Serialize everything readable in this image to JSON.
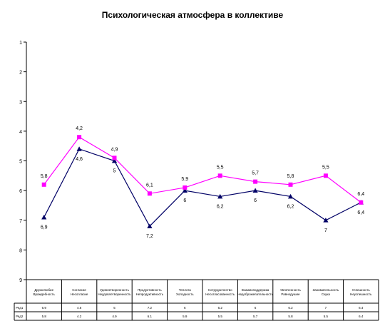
{
  "chart_data": {
    "type": "line",
    "title": "Психологическая атмосфера в коллективе",
    "xlabel": "",
    "ylabel": "",
    "ylim": [
      1,
      9
    ],
    "y_reversed": true,
    "yticks": [
      1,
      2,
      3,
      4,
      5,
      6,
      7,
      8,
      9
    ],
    "grid": false,
    "legend": "none",
    "categories": [
      [
        "Дружелюбие",
        "Враждебность"
      ],
      [
        "Согласие",
        "Несогласие"
      ],
      [
        "Удовлетворенность",
        "Неудовлетворенность"
      ],
      [
        "Продуктивность",
        "Непродуктивность"
      ],
      [
        "Теплота",
        "Холодность"
      ],
      [
        "Сотрудничество",
        "Несогласованность"
      ],
      [
        "Взаимоподдержка",
        "Недоброжелательность"
      ],
      [
        "Увлеченность",
        "Равнодушие"
      ],
      [
        "Занимательность",
        "Скука"
      ],
      [
        "Успешность",
        "Неуспешность"
      ]
    ],
    "series": [
      {
        "name": "Ряд1",
        "color": "#000066",
        "marker": "triangle",
        "values": [
          6.9,
          4.6,
          5,
          7.2,
          6,
          6.2,
          6,
          6.2,
          7,
          6.4
        ],
        "point_labels": [
          "6,9",
          "4,6",
          "5",
          "7,2",
          "6",
          "6,2",
          "6",
          "6,2",
          "7",
          "6,4"
        ],
        "table_values": [
          "6.9",
          "4.6",
          "5",
          "7.2",
          "6",
          "6.2",
          "6",
          "6.2",
          "7",
          "6.4"
        ]
      },
      {
        "name": "Ряд2",
        "color": "#ff00ff",
        "marker": "square",
        "values": [
          5.8,
          4.2,
          4.9,
          6.1,
          5.9,
          5.5,
          5.7,
          5.8,
          5.5,
          6.4
        ],
        "point_labels": [
          "5,8",
          "4,2",
          "4,9",
          "6,1",
          "5,9",
          "5,5",
          "5,7",
          "5,8",
          "5,5",
          "6,4"
        ],
        "table_values": [
          "5.8",
          "4.2",
          "4.9",
          "6.1",
          "5.9",
          "5.5",
          "5.7",
          "5.8",
          "5.5",
          "6.4"
        ]
      }
    ]
  }
}
